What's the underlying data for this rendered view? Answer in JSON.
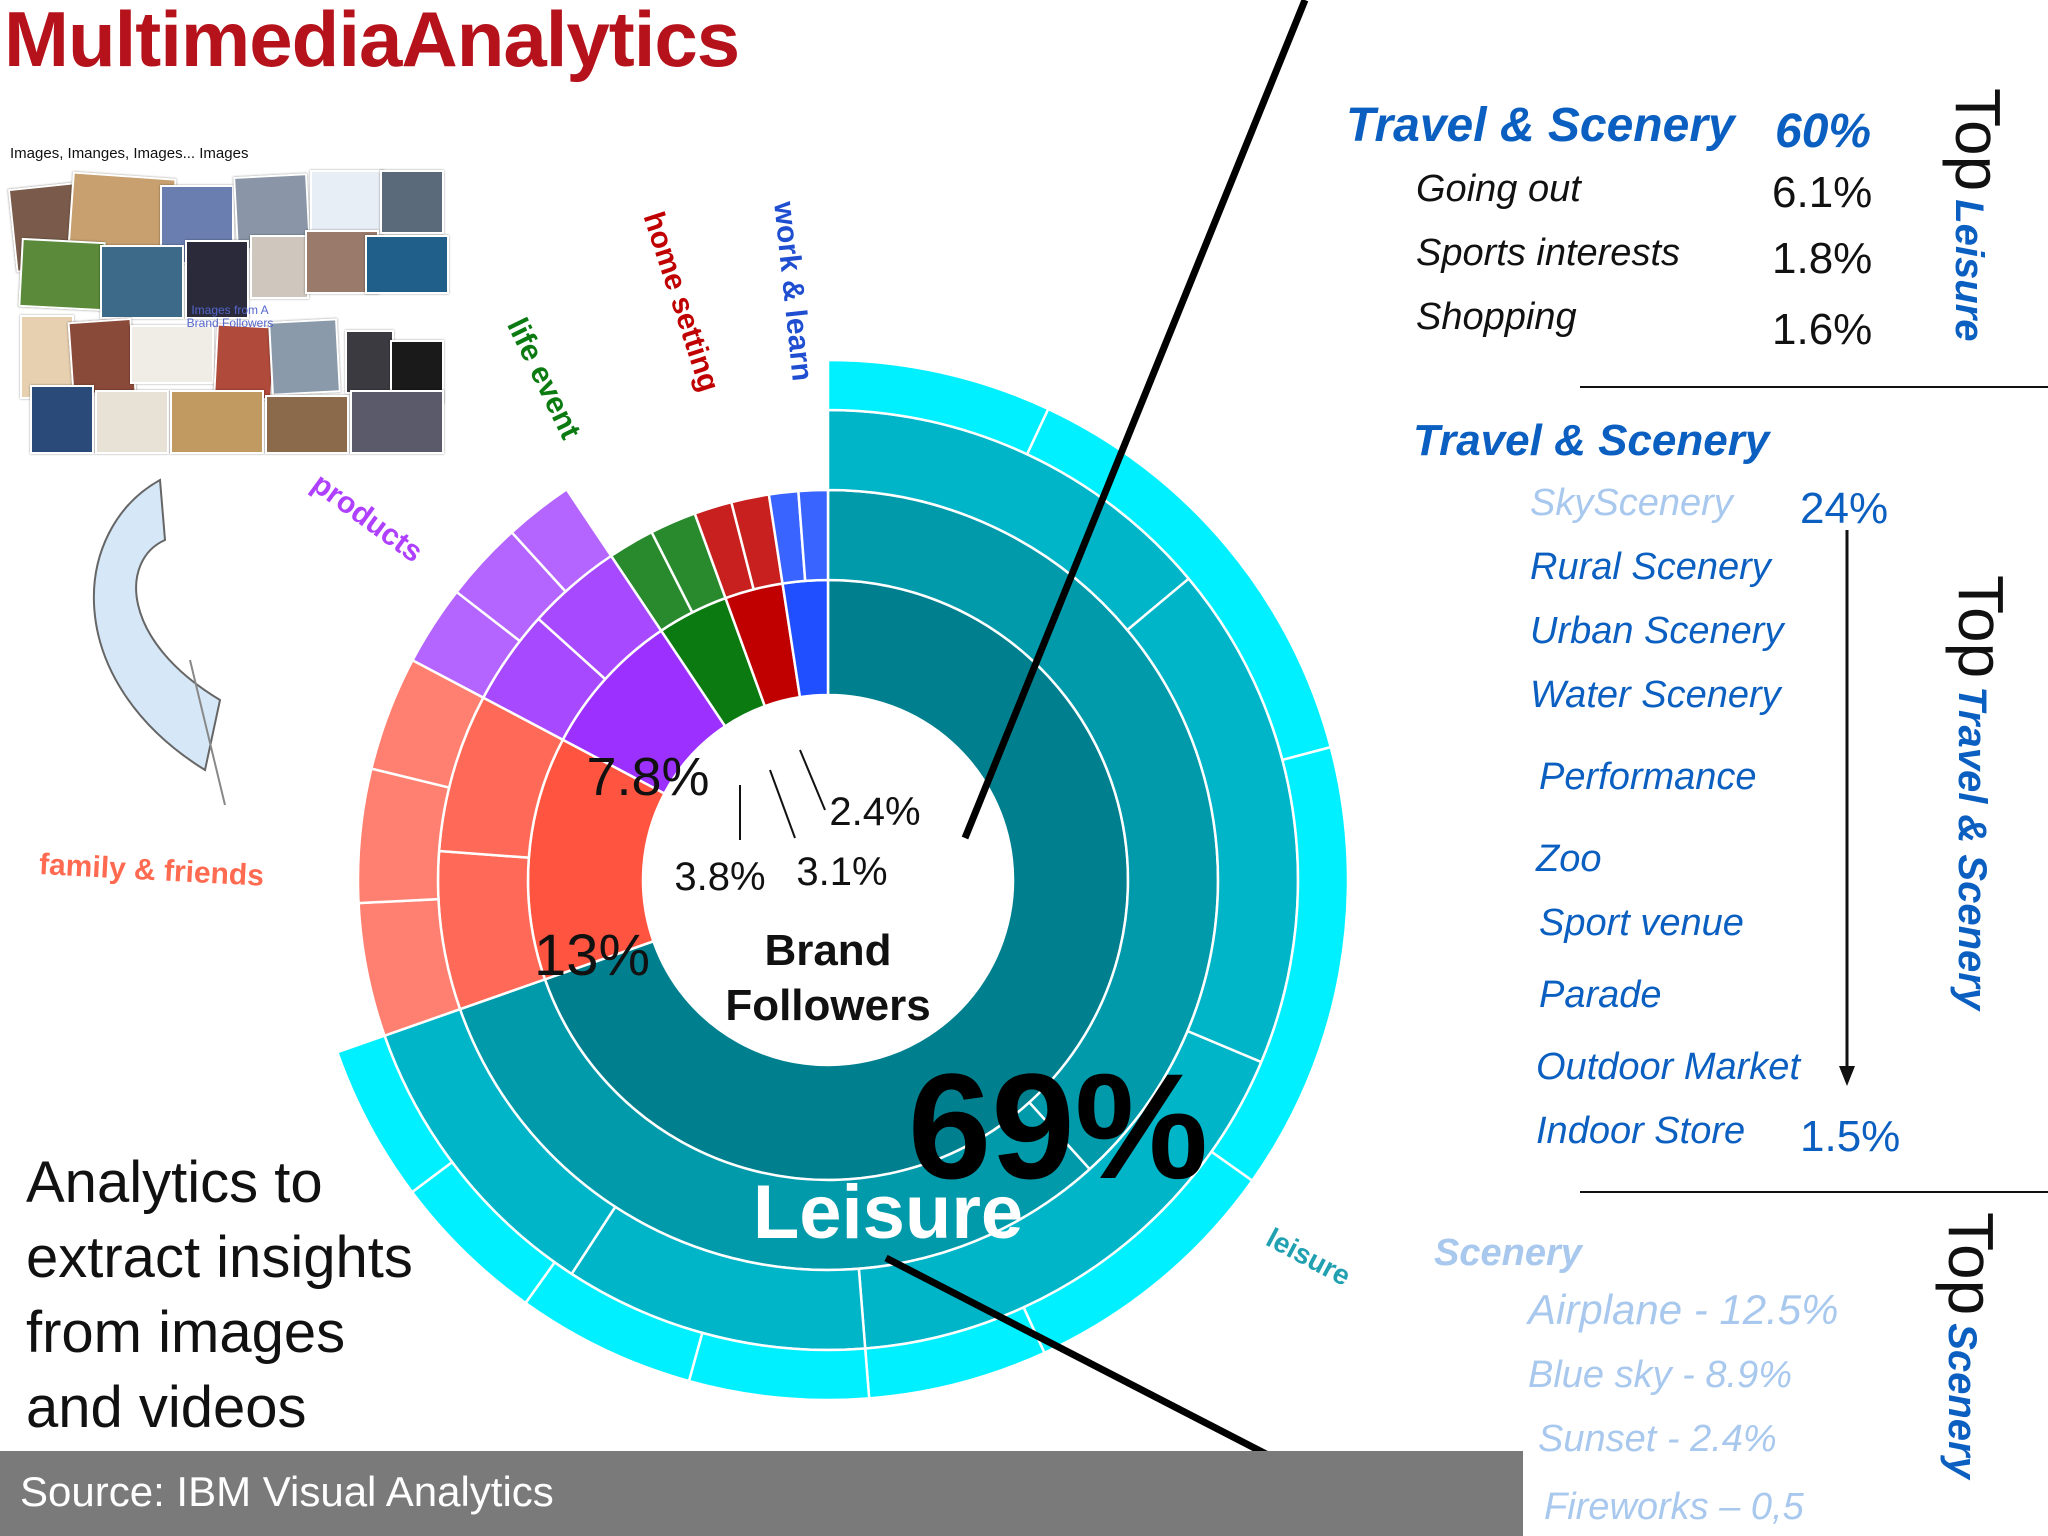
{
  "title": "MultimediaAnalytics",
  "collage": {
    "caption": "Images, Imanges, Images... Images",
    "label_line1": "Images from A",
    "label_line2": "Brand Followers"
  },
  "category_labels": {
    "work_learn": "work & learn",
    "home_setting": "home setting",
    "life_event": "life event",
    "products": "products",
    "family_friends": "family & friends",
    "leisure": "leisure"
  },
  "chart_data": {
    "type": "sunburst",
    "center_label_line1": "Brand",
    "center_label_line2": "Followers",
    "series": [
      {
        "name": "Leisure",
        "value": 69,
        "label": "69%",
        "color": "#00808f"
      },
      {
        "name": "family & friends",
        "value": 13,
        "label": "13%",
        "color": "#ff5540"
      },
      {
        "name": "products",
        "value": 7.8,
        "label": "7.8%",
        "color": "#9b30ff"
      },
      {
        "name": "life event",
        "value": 3.8,
        "label": "3.8%",
        "color": "#0b7a10"
      },
      {
        "name": "home setting",
        "value": 3.1,
        "label": "3.1%",
        "color": "#c00000"
      },
      {
        "name": "work & learn",
        "value": 2.4,
        "label": "2.4%",
        "color": "#1f4fff"
      }
    ],
    "big_label_value": "69%",
    "big_label_name": "Leisure"
  },
  "analytics_text": {
    "line1": "Analytics to",
    "line2": "extract insights",
    "line3": "from images",
    "line4": "and videos"
  },
  "source": "Source: IBM Visual Analytics",
  "top_leisure": {
    "title_name": "Travel & Scenery",
    "title_pct": "60%",
    "side_top": "Top",
    "side_sub": "Leisure",
    "items": [
      {
        "name": "Going out",
        "pct": "6.1%"
      },
      {
        "name": "Sports interests",
        "pct": "1.8%"
      },
      {
        "name": "Shopping",
        "pct": "1.6%"
      }
    ]
  },
  "top_travel": {
    "title": "Travel & Scenery",
    "side_top": "Top",
    "side_sub": "Travel & Scenery",
    "first_name": "SkyScenery",
    "first_pct": "24%",
    "items": [
      "Rural Scenery",
      "Urban Scenery",
      "Water Scenery",
      "Performance",
      "Zoo",
      "Sport venue",
      "Parade",
      "Outdoor Market"
    ],
    "last_name": "Indoor Store",
    "last_pct": "1.5%"
  },
  "top_scenery": {
    "title": "Scenery",
    "side_top": "Top",
    "side_sub": "Scenery",
    "items": [
      "Airplane - 12.5%",
      "Blue sky - 8.9%",
      "Sunset  - 2.4%",
      "Fireworks – 0,5"
    ]
  },
  "colors": {
    "title": "#b5121b",
    "accent_blue": "#0b5fc0",
    "light_blue": "#a8c8ee",
    "teal_inner": "#00808f",
    "teal_mid": "#009aaa",
    "teal_outer": "#00b5c8",
    "cyan": "#00f0ff"
  }
}
